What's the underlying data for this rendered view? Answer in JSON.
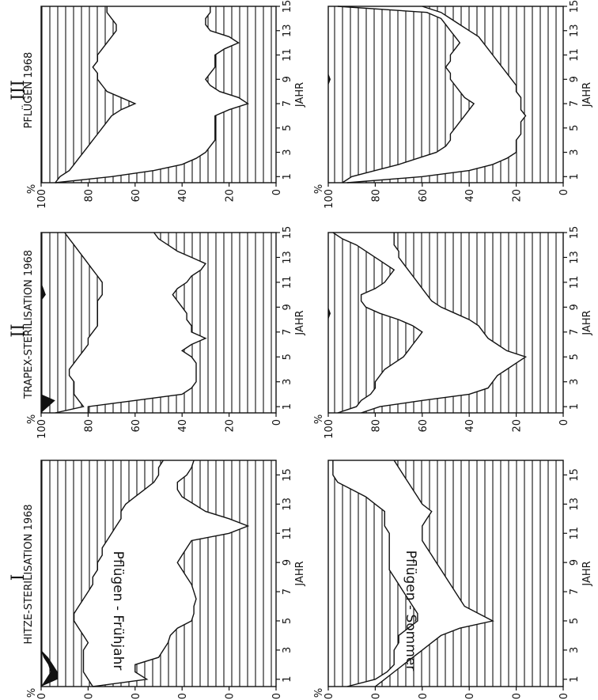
{
  "figure": {
    "row_labels": [
      "Pflügen - Frühjahr",
      "Pflügen - Sommer"
    ]
  },
  "chart_data": [
    {
      "type": "area",
      "panel": "I",
      "row": 1,
      "title": "HITZE-STERILISATION 1968",
      "xlabel": "JAHR",
      "ylabel": "%",
      "x": [
        0.5,
        1,
        1.5,
        2,
        2.5,
        3,
        3.5,
        4,
        4.5,
        5,
        5.5,
        6,
        6.5,
        7,
        7.5,
        8,
        8.5,
        9,
        9.5,
        10,
        10.5,
        11,
        11.5,
        12,
        12.5,
        13,
        13.5,
        14,
        14.5,
        15,
        15.5,
        16
      ],
      "upper": [
        78,
        80,
        82,
        82,
        82,
        82,
        80,
        82,
        84,
        86,
        86,
        84,
        82,
        80,
        78,
        78,
        76,
        76,
        74,
        74,
        72,
        70,
        68,
        66,
        66,
        64,
        60,
        56,
        52,
        50,
        50,
        48
      ],
      "lower": [
        78,
        55,
        60,
        60,
        50,
        48,
        46,
        45,
        42,
        36,
        35,
        35,
        34,
        35,
        36,
        38,
        40,
        42,
        40,
        38,
        36,
        20,
        12,
        20,
        30,
        35,
        40,
        42,
        42,
        38,
        36,
        35
      ],
      "black_top": [
        100,
        98,
        96,
        97,
        99,
        100,
        100,
        100,
        100,
        100,
        100,
        100,
        100,
        100,
        100,
        100,
        100,
        100,
        100,
        100,
        100,
        100,
        100,
        100,
        100,
        100,
        100,
        100,
        100,
        100,
        100,
        100
      ],
      "black_bottom": [
        100,
        93,
        93,
        95,
        97,
        100,
        100,
        100,
        100,
        100,
        100,
        100,
        100,
        100,
        100,
        100,
        100,
        100,
        100,
        100,
        100,
        100,
        100,
        100,
        100,
        100,
        100,
        100,
        100,
        100,
        100,
        100
      ],
      "xlim": [
        0.5,
        16
      ],
      "ylim": [
        0,
        100
      ],
      "xticks": [
        "1",
        "3",
        "5",
        "7",
        "9",
        "11",
        "13",
        "15"
      ],
      "yticks": [
        "0",
        "20",
        "40",
        "60",
        "80",
        "100"
      ]
    },
    {
      "type": "area",
      "panel": "II",
      "row": 1,
      "title": "TRAPEX-STERILISATION 1968",
      "xlabel": "JAHR",
      "ylabel": "%",
      "x": [
        0.5,
        1,
        1.5,
        2,
        2.5,
        3,
        3.5,
        4,
        4.5,
        5,
        5.5,
        6,
        6.5,
        7,
        7.5,
        8,
        8.5,
        9,
        9.5,
        10,
        10.5,
        11,
        11.5,
        12,
        12.5,
        13,
        13.5,
        14,
        14.5,
        15
      ],
      "upper": [
        94,
        82,
        84,
        86,
        86,
        86,
        88,
        88,
        86,
        84,
        82,
        80,
        80,
        78,
        76,
        76,
        76,
        76,
        76,
        74,
        74,
        74,
        76,
        78,
        80,
        82,
        84,
        86,
        88,
        90
      ],
      "lower": [
        80,
        80,
        60,
        40,
        36,
        34,
        34,
        34,
        34,
        36,
        40,
        36,
        30,
        36,
        36,
        38,
        38,
        40,
        42,
        44,
        42,
        38,
        36,
        32,
        30,
        36,
        42,
        46,
        50,
        52
      ],
      "black_top": [
        100,
        100,
        100,
        100,
        100,
        100,
        100,
        100,
        100,
        100,
        100,
        100,
        100,
        100,
        100,
        100,
        100,
        100,
        100,
        100,
        100,
        100,
        100,
        100,
        100,
        100,
        100,
        100,
        100,
        100
      ],
      "black_bottom": [
        100,
        97,
        94,
        100,
        100,
        100,
        100,
        100,
        100,
        100,
        100,
        100,
        100,
        100,
        100,
        100,
        100,
        100,
        100,
        98,
        99,
        100,
        100,
        100,
        100,
        100,
        100,
        100,
        100,
        100
      ],
      "xlim": [
        0.5,
        15
      ],
      "ylim": [
        0,
        100
      ],
      "xticks": [
        "1",
        "3",
        "5",
        "7",
        "9",
        "11",
        "13",
        "15"
      ],
      "yticks": [
        "0",
        "20",
        "40",
        "60",
        "80",
        "100"
      ]
    },
    {
      "type": "area",
      "panel": "III",
      "row": 1,
      "title": "PFLÜGEN 1968",
      "xlabel": "JAHR",
      "ylabel": "%",
      "x": [
        0.5,
        1,
        1.5,
        2,
        2.5,
        3,
        3.5,
        4,
        4.5,
        5,
        5.5,
        6,
        6.5,
        7,
        7.5,
        8,
        8.5,
        9,
        9.5,
        10,
        10.5,
        11,
        11.5,
        12,
        12.5,
        13,
        13.5,
        14,
        14.5,
        15
      ],
      "upper": [
        94,
        92,
        88,
        86,
        84,
        82,
        80,
        78,
        76,
        74,
        72,
        70,
        66,
        60,
        66,
        72,
        74,
        76,
        76,
        78,
        76,
        76,
        74,
        72,
        70,
        68,
        68,
        70,
        72,
        72
      ],
      "lower": [
        94,
        70,
        52,
        40,
        34,
        30,
        28,
        26,
        26,
        26,
        26,
        26,
        20,
        12,
        16,
        24,
        28,
        30,
        28,
        26,
        26,
        26,
        22,
        16,
        20,
        28,
        30,
        30,
        28,
        28
      ],
      "xlim": [
        0.5,
        15
      ],
      "ylim": [
        0,
        100
      ],
      "xticks": [
        "1",
        "3",
        "5",
        "7",
        "9",
        "11",
        "13",
        "15"
      ],
      "yticks": [
        "0",
        "20",
        "40",
        "60",
        "80",
        "100"
      ]
    },
    {
      "type": "area",
      "panel": "I",
      "row": 2,
      "xlabel": "JAHR",
      "ylabel": "%",
      "x": [
        0.5,
        1,
        1.5,
        2,
        2.5,
        3,
        3.5,
        4,
        4.5,
        5,
        5.5,
        6,
        6.5,
        7,
        7.5,
        8,
        8.5,
        9,
        9.5,
        10,
        10.5,
        11,
        11.5,
        12,
        12.5,
        13,
        13.5,
        14,
        14.5,
        15,
        15.5,
        16
      ],
      "upper": [
        92,
        80,
        75,
        72,
        72,
        72,
        70,
        70,
        66,
        62,
        62,
        64,
        66,
        68,
        70,
        72,
        74,
        74,
        74,
        74,
        74,
        74,
        76,
        76,
        76,
        80,
        84,
        90,
        96,
        98,
        98,
        98
      ],
      "lower": [
        80,
        76,
        72,
        68,
        64,
        60,
        56,
        52,
        44,
        30,
        36,
        42,
        44,
        46,
        48,
        50,
        52,
        54,
        56,
        58,
        60,
        60,
        60,
        58,
        56,
        60,
        62,
        64,
        66,
        68,
        70,
        72
      ],
      "black_top": [
        100,
        100,
        100,
        100,
        100,
        100,
        100,
        100,
        100,
        100,
        100,
        100,
        100,
        100,
        100,
        100,
        100,
        100,
        100,
        100,
        100,
        100,
        100,
        100,
        100,
        100,
        100,
        100,
        100,
        100,
        100,
        100
      ],
      "black_bottom": [
        100,
        100,
        100,
        100,
        100,
        100,
        100,
        100,
        100,
        100,
        100,
        100,
        100,
        100,
        100,
        100,
        100,
        100,
        100,
        100,
        100,
        100,
        100,
        100,
        100,
        100,
        100,
        100,
        100,
        100,
        100,
        100
      ],
      "xlim": [
        0.5,
        16
      ],
      "ylim": [
        0,
        100
      ],
      "xticks": [
        "1",
        "3",
        "5",
        "7",
        "9",
        "11",
        "13",
        "15"
      ],
      "yticks": [
        "0",
        "20",
        "40",
        "60",
        "80",
        "100"
      ]
    },
    {
      "type": "area",
      "panel": "II",
      "row": 2,
      "xlabel": "JAHR",
      "ylabel": "%",
      "x": [
        0.5,
        1,
        1.5,
        2,
        2.5,
        3,
        3.5,
        4,
        4.5,
        5,
        5.5,
        6,
        6.5,
        7,
        7.5,
        8,
        8.5,
        9,
        9.5,
        10,
        10.5,
        11,
        11.5,
        12,
        12.5,
        13,
        13.5,
        14,
        14.5,
        15
      ],
      "upper": [
        96,
        88,
        86,
        82,
        80,
        80,
        78,
        76,
        72,
        68,
        66,
        64,
        62,
        60,
        64,
        70,
        78,
        84,
        86,
        86,
        80,
        76,
        74,
        72,
        76,
        80,
        84,
        88,
        94,
        98
      ],
      "lower": [
        86,
        78,
        60,
        40,
        32,
        30,
        28,
        24,
        20,
        16,
        24,
        28,
        32,
        34,
        36,
        40,
        46,
        52,
        56,
        58,
        60,
        62,
        64,
        66,
        68,
        70,
        70,
        72,
        72,
        72
      ],
      "black_top": [
        100,
        100,
        100,
        100,
        100,
        100,
        100,
        100,
        100,
        100,
        100,
        100,
        100,
        100,
        100,
        100,
        100,
        100,
        100,
        100,
        100,
        100,
        100,
        100,
        100,
        100,
        100,
        100,
        100,
        100
      ],
      "black_bottom": [
        100,
        100,
        100,
        100,
        100,
        100,
        100,
        100,
        100,
        100,
        100,
        100,
        100,
        100,
        100,
        100,
        99,
        100,
        100,
        100,
        100,
        100,
        100,
        100,
        100,
        100,
        100,
        100,
        100,
        100
      ],
      "xlim": [
        0.5,
        15
      ],
      "ylim": [
        0,
        100
      ],
      "xticks": [
        "1",
        "3",
        "5",
        "7",
        "9",
        "11",
        "13",
        "15"
      ],
      "yticks": [
        "0",
        "20",
        "40",
        "60",
        "80",
        "100"
      ]
    },
    {
      "type": "area",
      "panel": "III",
      "row": 2,
      "xlabel": "JAHR",
      "ylabel": "%",
      "x": [
        0.5,
        1,
        1.5,
        2,
        2.5,
        3,
        3.5,
        4,
        4.5,
        5,
        5.5,
        6,
        6.5,
        7,
        7.5,
        8,
        8.5,
        9,
        9.5,
        10,
        10.5,
        11,
        11.5,
        12,
        12.5,
        13,
        13.5,
        14,
        14.5,
        15
      ],
      "upper": [
        94,
        90,
        80,
        70,
        62,
        54,
        50,
        48,
        48,
        46,
        44,
        42,
        40,
        38,
        42,
        44,
        46,
        48,
        48,
        50,
        48,
        48,
        46,
        44,
        46,
        48,
        50,
        52,
        58,
        96
      ],
      "lower": [
        92,
        60,
        40,
        30,
        24,
        20,
        20,
        20,
        18,
        18,
        18,
        16,
        18,
        18,
        18,
        20,
        20,
        22,
        24,
        26,
        28,
        30,
        32,
        34,
        36,
        40,
        44,
        48,
        52,
        60
      ],
      "black_top": [
        100,
        100,
        100,
        100,
        100,
        100,
        100,
        100,
        100,
        100,
        100,
        100,
        100,
        100,
        100,
        100,
        100,
        100,
        100,
        100,
        100,
        100,
        100,
        100,
        100,
        100,
        100,
        100,
        100,
        100
      ],
      "black_bottom": [
        100,
        100,
        100,
        100,
        100,
        100,
        100,
        100,
        100,
        100,
        100,
        100,
        100,
        100,
        100,
        100,
        100,
        99,
        100,
        100,
        100,
        100,
        100,
        100,
        100,
        100,
        100,
        100,
        100,
        100
      ],
      "xlim": [
        0.5,
        15
      ],
      "ylim": [
        0,
        100
      ],
      "xticks": [
        "1",
        "3",
        "5",
        "7",
        "9",
        "11",
        "13",
        "15"
      ],
      "yticks": [
        "0",
        "20",
        "40",
        "60",
        "80",
        "100"
      ]
    }
  ]
}
